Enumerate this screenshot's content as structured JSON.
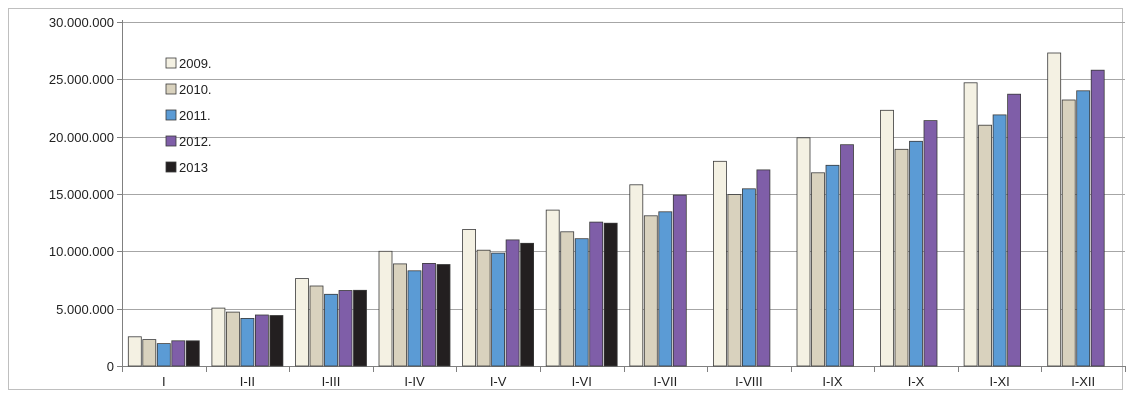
{
  "chart_data": {
    "type": "bar",
    "categories": [
      "I",
      "I-II",
      "I-III",
      "I-IV",
      "I-V",
      "I-VI",
      "I-VII",
      "I-VIII",
      "I-IX",
      "I-X",
      "I-XI",
      "I-XII"
    ],
    "series": [
      {
        "name": "2009.",
        "color": "#f4f1e3",
        "values": [
          2550000,
          5050000,
          7620000,
          10000000,
          11900000,
          13600000,
          15800000,
          17850000,
          19900000,
          22300000,
          24700000,
          27300000
        ]
      },
      {
        "name": "2010.",
        "color": "#d9d2be",
        "values": [
          2300000,
          4700000,
          6980000,
          8900000,
          10100000,
          11700000,
          13100000,
          14950000,
          16850000,
          18900000,
          21000000,
          23200000
        ]
      },
      {
        "name": "2011.",
        "color": "#5b9bd5",
        "values": [
          1950000,
          4150000,
          6250000,
          8300000,
          9850000,
          11100000,
          13450000,
          15450000,
          17500000,
          19600000,
          21900000,
          24000000
        ]
      },
      {
        "name": "2012.",
        "color": "#7f5ea8",
        "values": [
          2200000,
          4450000,
          6580000,
          8950000,
          11000000,
          12550000,
          14900000,
          17100000,
          19300000,
          21400000,
          23700000,
          25800000
        ]
      },
      {
        "name": "2013",
        "color": "#231f20",
        "values": [
          2200000,
          4400000,
          6600000,
          8850000,
          10700000,
          12450000,
          null,
          null,
          null,
          null,
          null,
          null
        ]
      }
    ],
    "ylim": [
      0,
      30000000
    ],
    "yticks": [
      0,
      5000000,
      10000000,
      15000000,
      20000000,
      25000000,
      30000000
    ],
    "ytick_labels": [
      "0",
      "5.000.000",
      "10.000.000",
      "15.000.000",
      "20.000.000",
      "25.000.000",
      "30.000.000"
    ],
    "grid": "horizontal",
    "legend": "top-left",
    "title": "",
    "xlabel": "",
    "ylabel": ""
  }
}
